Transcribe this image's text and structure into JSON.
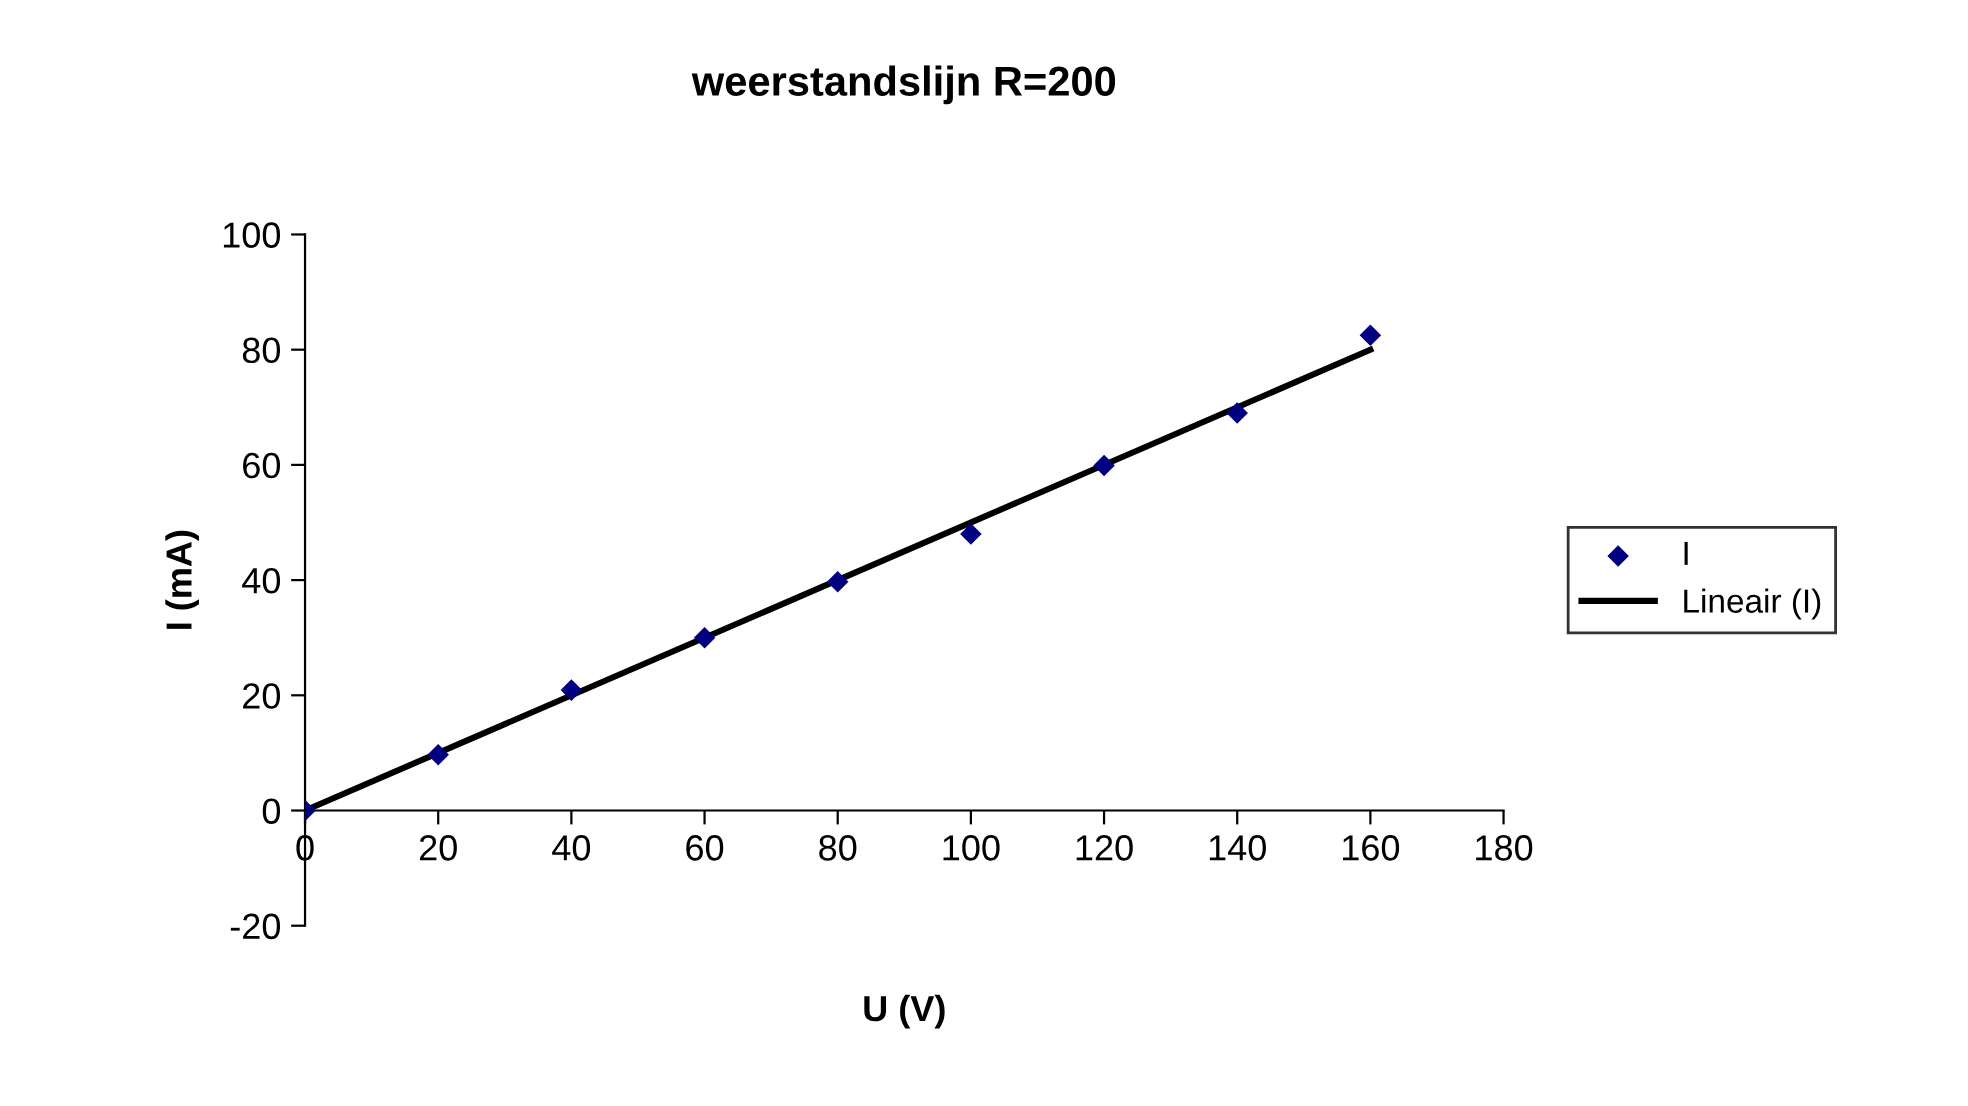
{
  "chart_data": {
    "type": "scatter",
    "title": "weerstandslijn R=200",
    "xlabel": "U (V)",
    "ylabel": "I (mA)",
    "x": [
      0,
      20,
      40,
      60,
      80,
      100,
      120,
      140,
      160
    ],
    "series": [
      {
        "name": "I",
        "type": "scatter",
        "color": "#000080",
        "marker": "diamond",
        "values": [
          0,
          9.7,
          20.9,
          30,
          39.7,
          48,
          59.9,
          69,
          82.5
        ]
      },
      {
        "name": "Lineair (I)",
        "type": "line",
        "color": "#000000",
        "marker": "none",
        "line_style": "solid",
        "x": [
          0,
          160
        ],
        "values": [
          0,
          80
        ]
      }
    ],
    "xlim": [
      0,
      180
    ],
    "xticks": [
      0,
      20,
      40,
      60,
      80,
      100,
      120,
      140,
      160,
      180
    ],
    "ylim": [
      -20,
      100
    ],
    "yticks": [
      -20,
      0,
      20,
      40,
      60,
      80,
      100
    ],
    "grid": false,
    "legend": "right"
  }
}
